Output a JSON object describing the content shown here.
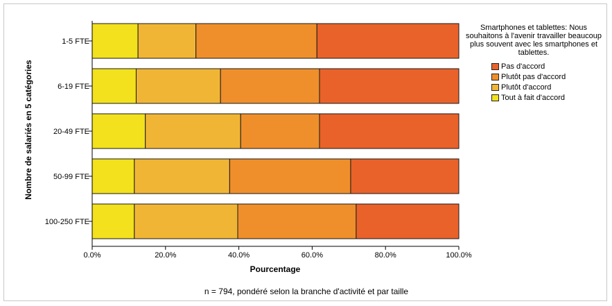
{
  "chart_data": {
    "type": "bar",
    "orientation": "horizontal",
    "stacked": true,
    "categories": [
      "1-5 FTE",
      "6-19 FTE",
      "20-49 FTE",
      "50-99 FTE",
      "100-250 FTE"
    ],
    "series": [
      {
        "name": "Tout à fait d'accord",
        "color": "#f2e11c",
        "values": [
          12.5,
          12.0,
          14.5,
          11.5,
          11.5
        ]
      },
      {
        "name": "Plutôt d'accord",
        "color": "#f1b535",
        "values": [
          15.8,
          23.0,
          26.0,
          26.0,
          28.2
        ]
      },
      {
        "name": "Plutôt pas d'accord",
        "color": "#ef8f2b",
        "values": [
          33.0,
          27.0,
          21.5,
          33.0,
          32.3
        ]
      },
      {
        "name": "Pas d'accord",
        "color": "#e9622a",
        "values": [
          38.7,
          38.0,
          38.0,
          29.5,
          28.0
        ]
      }
    ],
    "xlabel": "Pourcentage",
    "ylabel": "Nombre de salariés en 5 catégories",
    "xlim": [
      0,
      100
    ],
    "xticks": [
      "0.0%",
      "20.0%",
      "40.0%",
      "60.0%",
      "80.0%",
      "100.0%"
    ],
    "legend_title": "Smartphones et tablettes: Nous souhaitons à l'avenir travailler beaucoup plus souvent avec les smartphones et tablettes.",
    "legend_placement": "right",
    "footnote": "n = 794, pondéré selon la branche d'activité et par taille",
    "grid": false
  }
}
